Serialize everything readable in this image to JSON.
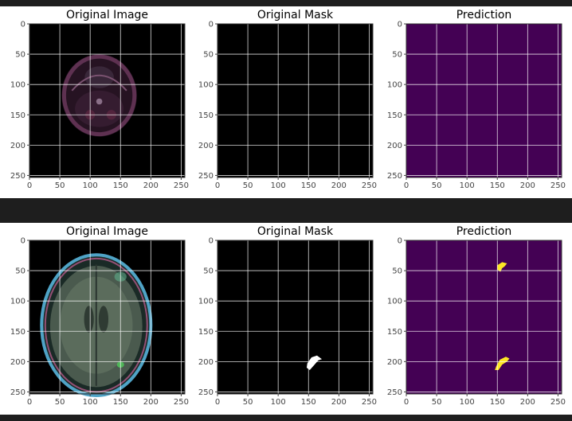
{
  "figures": [
    {
      "panels": [
        {
          "title": "Original Image",
          "kind": "scan_faint"
        },
        {
          "title": "Original Mask",
          "kind": "mask_empty"
        },
        {
          "title": "Prediction",
          "kind": "pred_empty"
        }
      ]
    },
    {
      "panels": [
        {
          "title": "Original Image",
          "kind": "scan_axial"
        },
        {
          "title": "Original Mask",
          "kind": "mask_lesion"
        },
        {
          "title": "Prediction",
          "kind": "pred_lesion"
        }
      ]
    }
  ],
  "axis": {
    "xticks": [
      "0",
      "50",
      "100",
      "150",
      "200",
      "250"
    ],
    "yticks": [
      "0",
      "50",
      "100",
      "150",
      "200",
      "250"
    ],
    "range": [
      0,
      256
    ]
  },
  "colors": {
    "prediction_bg": "#440154",
    "prediction_fg": "#fde725",
    "mask_bg": "#000000",
    "mask_fg": "#ffffff",
    "grid": "#ffffff"
  }
}
